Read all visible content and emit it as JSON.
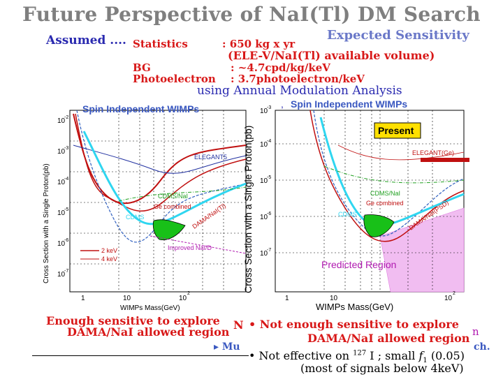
{
  "title": "Future Perspective of NaI(Tl) DM Search",
  "assumed_label": "Assumed ....",
  "expected_sensitivity": "Expected Sensitivity",
  "assumptions": {
    "statistics_label": "Statistics",
    "statistics_value": ": 650 kg x yr",
    "statistics_note": "(ELE-V/NaI(Tl) available volume)",
    "bg_label": "BG",
    "bg_value": ": ~4.7cpd/kg/keV",
    "photoelectron_label": "Photoelectron",
    "photoelectron_value": ": 3.7photoelectron/keV"
  },
  "method": "using Annual Modulation Analysis",
  "method_sep": ",",
  "left_plot": {
    "title": "Spin Independent WIMPs",
    "ylabel": "Cross Section with a Single Proton(pb)",
    "xlabel": "WIMPs Mass(GeV)",
    "y_exps": [
      "-2",
      "-3",
      "-4",
      "-5",
      "-6",
      "-7"
    ],
    "x_ticks": [
      "1",
      "10",
      "10"
    ],
    "x_tick_exp": "2",
    "y_base": "10",
    "labels": {
      "elegant": "ELEGANT5",
      "cdms": "CDMS/NaI",
      "ge": "Ge combined",
      "dama": "DAMA/NaI(Tl)",
      "cdms2": "CDMS",
      "improved": "Improved NaI/D",
      "legend1": "2 keV",
      "legend2": "4 keV"
    },
    "caption1": "Enough sensitive to explore",
    "caption2": "DAMA/NaI allowed region"
  },
  "right_plot": {
    "title": "Spin Independent WIMPs",
    "ylabel": "Cross Section with a Single Proton(pb)",
    "xlabel": "WIMPs Mass(GeV)",
    "y_exps": [
      "-3",
      "-4",
      "-5",
      "-6",
      "-7"
    ],
    "x_ticks": [
      "1",
      "10",
      "10"
    ],
    "x_tick_exp": "2",
    "y_base": "10",
    "present": "Present",
    "labels": {
      "elegant": "ELEGANT(Ge)",
      "cdms": "CDMS/NaI",
      "ge": "Ge combined",
      "dama": "DAMA/NaI(PSD)",
      "cdms2": "CDMS"
    },
    "predicted": "Predicted Region"
  },
  "bullets": {
    "b1": "• Not enough sensitive to explore",
    "b1_tail": "n",
    "b1_lead": "N",
    "b2": "DAMA/NaI allowed region",
    "b3_prefix": "▸ Mu",
    "b3_tail": "ch.",
    "b4_pre": "• Not effective on",
    "b4_iso": "127",
    "b4_el": "I ; small",
    "b4_f": "f",
    "b4_fsub": "1",
    "b4_val": "(0.05)",
    "b5": "(most of signals below 4keV)"
  },
  "colors": {
    "title": "#7f7f7f",
    "blue_heading": "#2a2ab0",
    "red_text": "#d81818",
    "cyan_curve": "#2fd6f0",
    "green_region": "#18c018",
    "predicted": "#e07ce0"
  }
}
